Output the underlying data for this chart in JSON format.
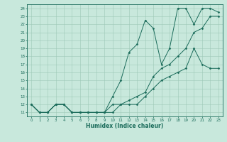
{
  "title": "",
  "xlabel": "Humidex (Indice chaleur)",
  "xlim": [
    -0.5,
    23.5
  ],
  "ylim": [
    10.5,
    24.5
  ],
  "yticks": [
    11,
    12,
    13,
    14,
    15,
    16,
    17,
    18,
    19,
    20,
    21,
    22,
    23,
    24
  ],
  "xticks": [
    0,
    1,
    2,
    3,
    4,
    5,
    6,
    7,
    8,
    9,
    10,
    11,
    12,
    13,
    14,
    15,
    16,
    17,
    18,
    19,
    20,
    21,
    22,
    23
  ],
  "bg_color": "#c8e8dc",
  "line_color": "#1a6b5a",
  "grid_color": "#9ec8b8",
  "figsize": [
    3.2,
    2.0
  ],
  "dpi": 100,
  "series": [
    {
      "x": [
        0,
        1,
        2,
        3,
        4,
        5,
        6,
        7,
        8,
        9,
        10,
        11,
        12,
        13,
        14,
        15,
        16,
        17,
        18,
        19,
        20,
        21,
        22,
        23
      ],
      "y": [
        12,
        11,
        11,
        12,
        12,
        11,
        11,
        11,
        11,
        11,
        13,
        15,
        18.5,
        19.5,
        22.5,
        21.5,
        17,
        19,
        24,
        24,
        22,
        24,
        24,
        23.5
      ]
    },
    {
      "x": [
        0,
        1,
        2,
        3,
        4,
        5,
        6,
        7,
        8,
        9,
        10,
        11,
        12,
        13,
        14,
        15,
        16,
        17,
        18,
        19,
        20,
        21,
        22,
        23
      ],
      "y": [
        12,
        11,
        11,
        12,
        12,
        11,
        11,
        11,
        11,
        11,
        11,
        12,
        12,
        12,
        13,
        14,
        15,
        15.5,
        16,
        16.5,
        19,
        17,
        16.5,
        16.5
      ]
    },
    {
      "x": [
        0,
        1,
        2,
        3,
        4,
        5,
        6,
        7,
        8,
        9,
        10,
        11,
        12,
        13,
        14,
        15,
        16,
        17,
        18,
        19,
        20,
        21,
        22,
        23
      ],
      "y": [
        12,
        11,
        11,
        12,
        12,
        11,
        11,
        11,
        11,
        11,
        12,
        12,
        12.5,
        13,
        13.5,
        15.5,
        16.5,
        17,
        18,
        19,
        21,
        21.5,
        23,
        23
      ]
    }
  ]
}
